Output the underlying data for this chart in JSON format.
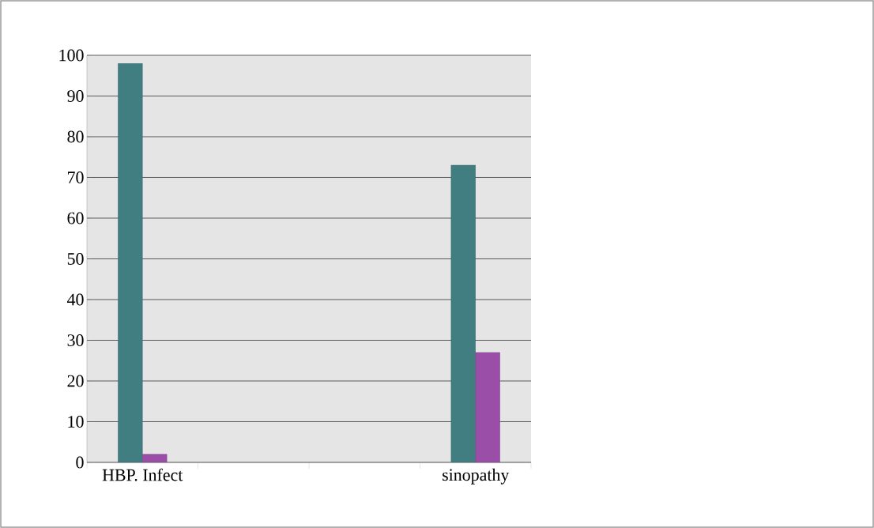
{
  "chart_data": {
    "type": "bar",
    "categories": [
      "HBP. Infect",
      null,
      null,
      "sinopathy"
    ],
    "series": [
      {
        "color": "#407e82",
        "values": [
          98,
          null,
          null,
          73
        ]
      },
      {
        "color": "#9b4ea8",
        "values": [
          2,
          null,
          null,
          27
        ]
      }
    ],
    "ylim": [
      0,
      100
    ],
    "yticks": [
      0,
      10,
      20,
      30,
      40,
      50,
      60,
      70,
      80,
      90,
      100
    ],
    "grid": "y"
  }
}
